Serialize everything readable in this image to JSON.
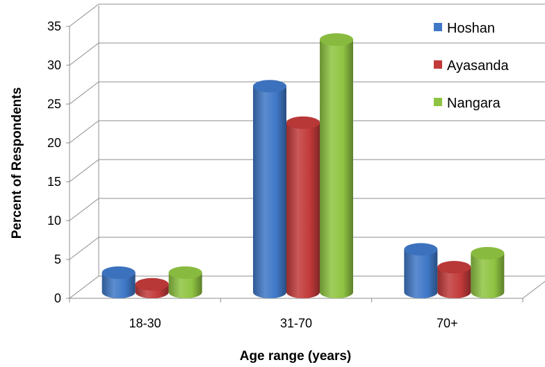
{
  "chart_data": {
    "type": "bar",
    "title": "",
    "xlabel": "Age range (years)",
    "ylabel": "Percent of Respondents",
    "categories": [
      "18-30",
      "31-70",
      "70+"
    ],
    "series": [
      {
        "name": "Hoshan",
        "color": "#3f78c7",
        "values": [
          2.5,
          26.5,
          5.5
        ]
      },
      {
        "name": "Ayasanda",
        "color": "#c23a3a",
        "values": [
          1.0,
          21.8,
          3.2
        ]
      },
      {
        "name": "Nangara",
        "color": "#8fc442",
        "values": [
          2.5,
          32.5,
          5.0
        ]
      }
    ],
    "ylim": [
      0,
      35
    ],
    "yticks": [
      "0",
      "5",
      "10",
      "15",
      "20",
      "25",
      "30",
      "35"
    ],
    "grid": true,
    "legend_position": "top-right",
    "style": "3d-cylinder"
  }
}
